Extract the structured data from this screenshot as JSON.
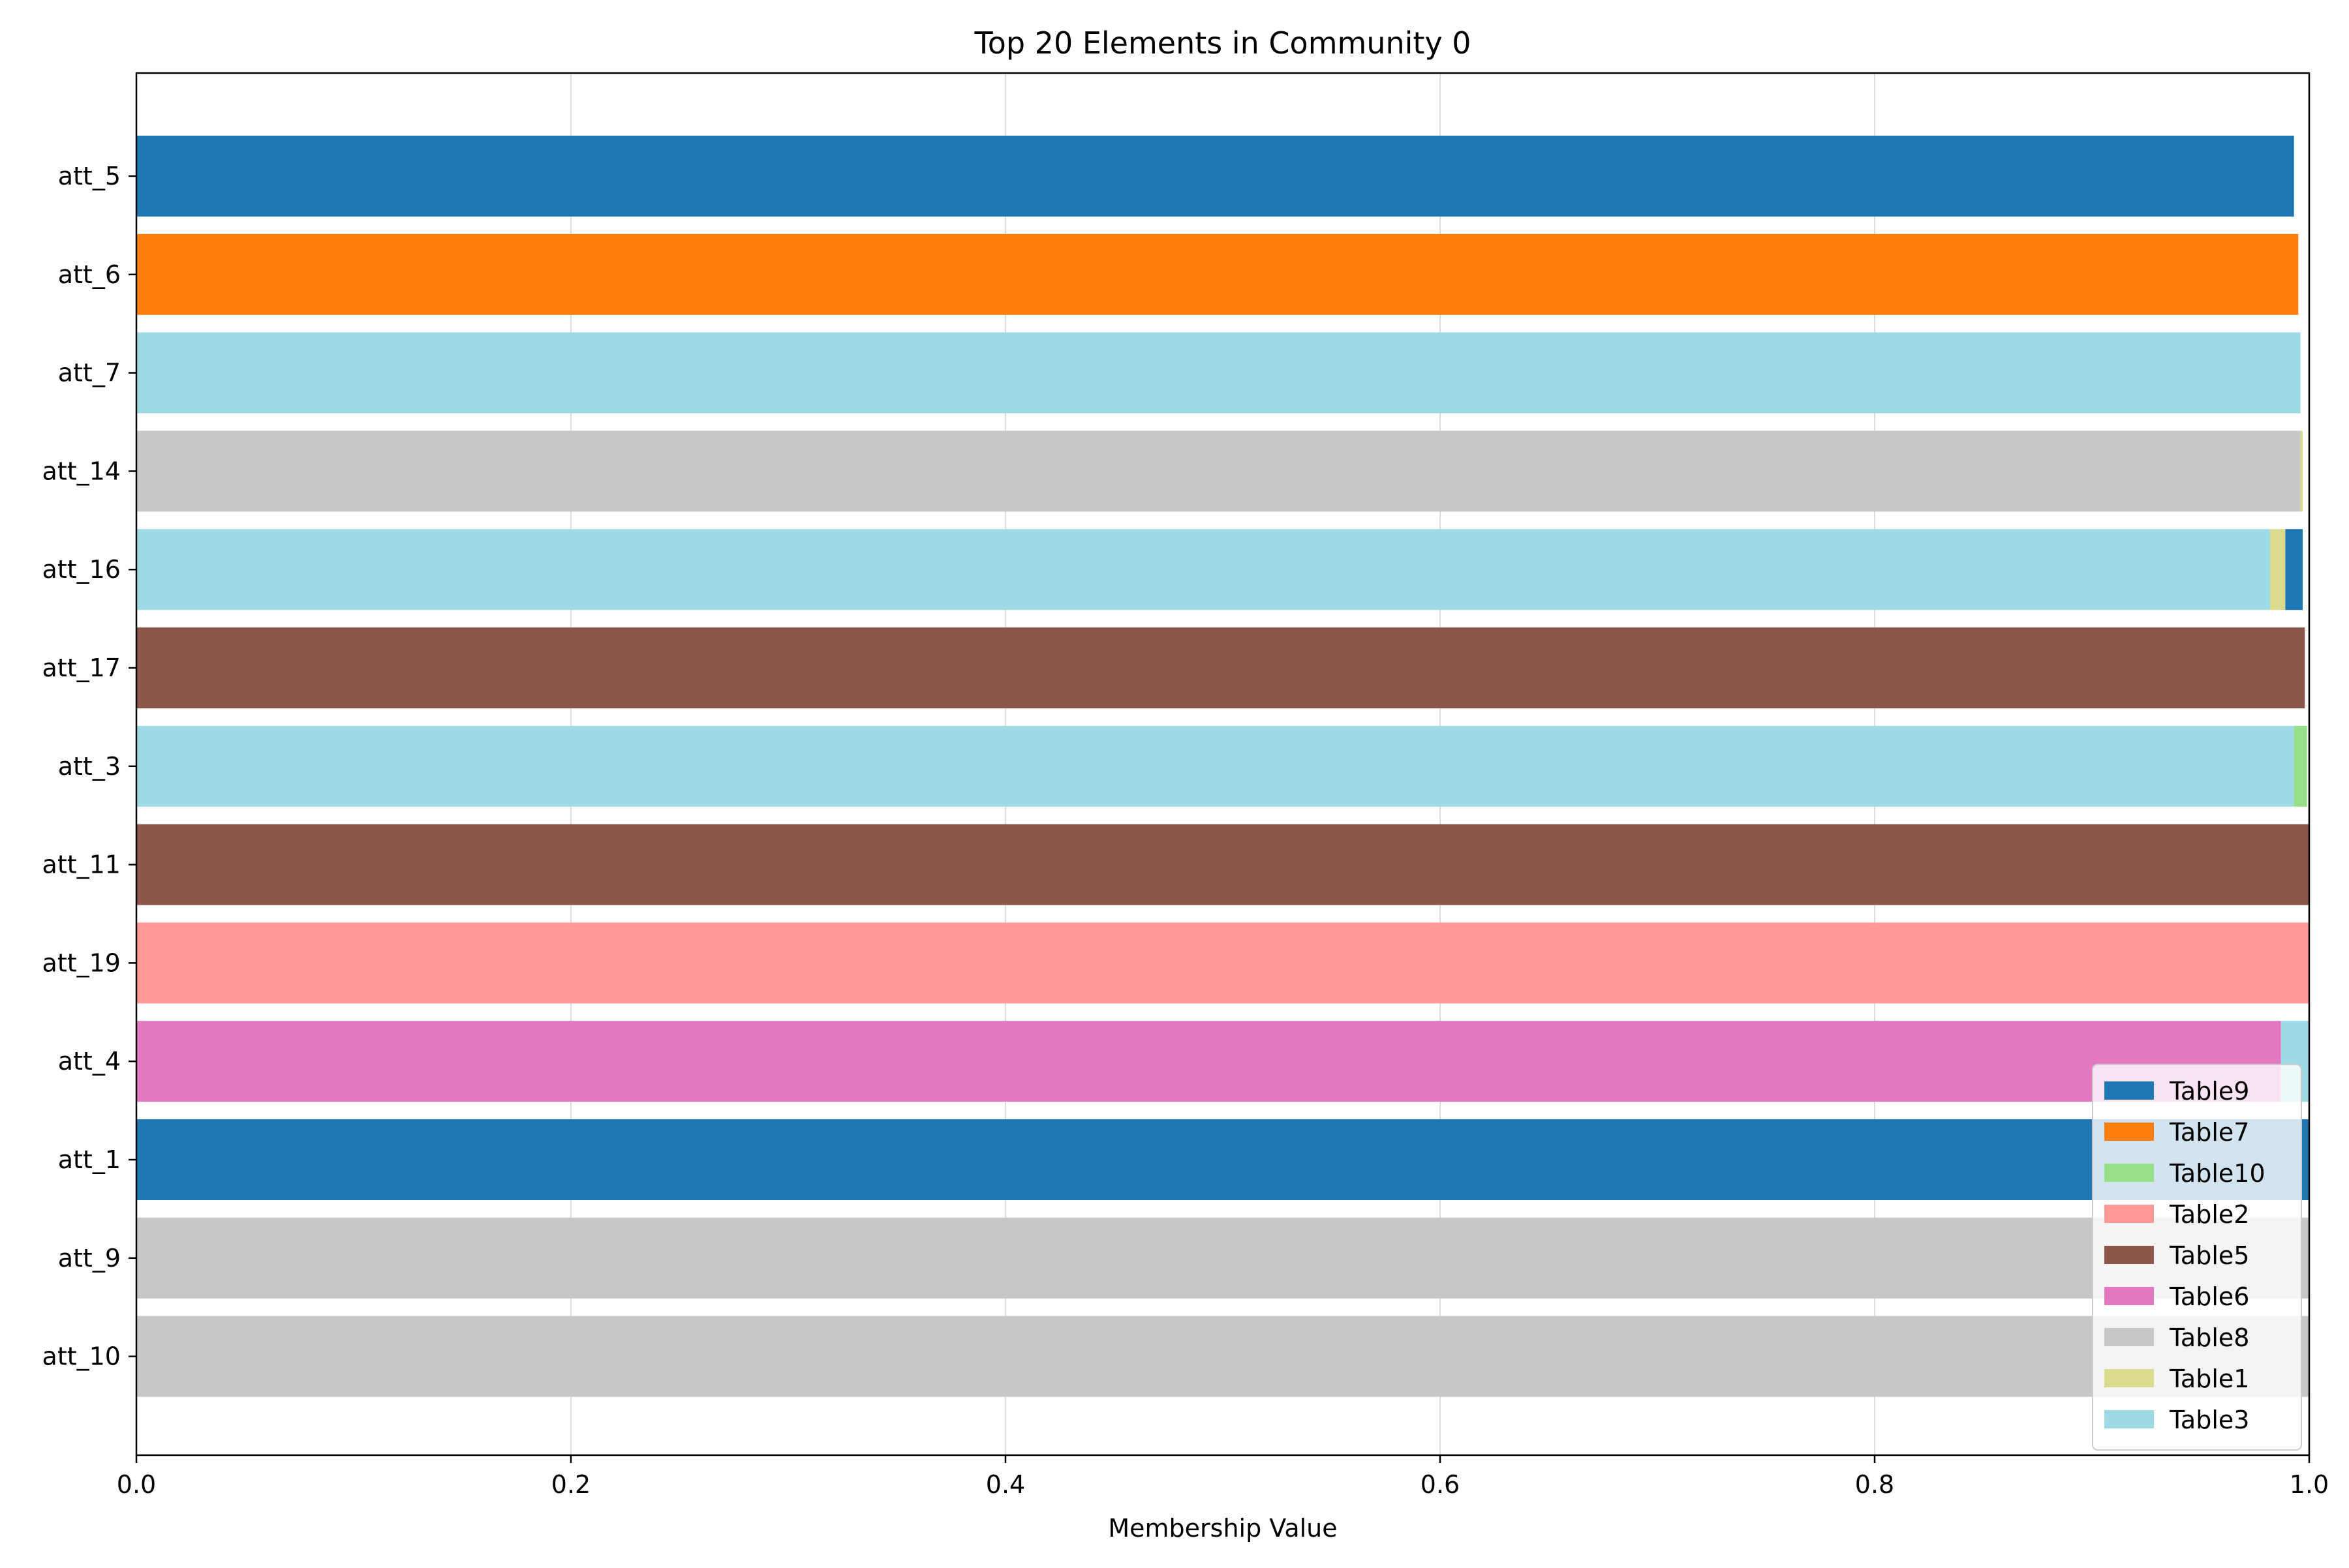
{
  "chart_data": {
    "type": "bar",
    "orientation": "horizontal",
    "stacked": true,
    "title": "Top 20 Elements in Community 0",
    "xlabel": "Membership Value",
    "ylabel": "",
    "xlim": [
      0,
      1.0
    ],
    "x_ticks": [
      "0.0",
      "0.2",
      "0.4",
      "0.6",
      "0.8",
      "1.0"
    ],
    "grid": "x-axis vertical lines",
    "legend_position": "lower-right",
    "categories": [
      "att_5",
      "att_6",
      "att_7",
      "att_14",
      "att_16",
      "att_17",
      "att_3",
      "att_11",
      "att_19",
      "att_4",
      "att_1",
      "att_9",
      "att_10"
    ],
    "series": [
      {
        "name": "Table9",
        "color": "#1f77b4"
      },
      {
        "name": "Table7",
        "color": "#ff7f0e"
      },
      {
        "name": "Table10",
        "color": "#98df8a"
      },
      {
        "name": "Table2",
        "color": "#ff9896"
      },
      {
        "name": "Table5",
        "color": "#8c564b"
      },
      {
        "name": "Table6",
        "color": "#e377c2"
      },
      {
        "name": "Table8",
        "color": "#c7c7c7"
      },
      {
        "name": "Table1",
        "color": "#dbdb8d"
      },
      {
        "name": "Table3",
        "color": "#9edae5"
      }
    ],
    "bars": [
      {
        "category": "att_5",
        "segments": [
          {
            "series": "Table9",
            "value": 0.993
          }
        ]
      },
      {
        "category": "att_6",
        "segments": [
          {
            "series": "Table7",
            "value": 0.995
          }
        ]
      },
      {
        "category": "att_7",
        "segments": [
          {
            "series": "Table3",
            "value": 0.996
          }
        ]
      },
      {
        "category": "att_14",
        "segments": [
          {
            "series": "Table8",
            "value": 0.996
          },
          {
            "series": "Table1",
            "value": 0.001
          }
        ]
      },
      {
        "category": "att_16",
        "segments": [
          {
            "series": "Table3",
            "value": 0.982
          },
          {
            "series": "Table1",
            "value": 0.007
          },
          {
            "series": "Table9",
            "value": 0.008
          }
        ]
      },
      {
        "category": "att_17",
        "segments": [
          {
            "series": "Table5",
            "value": 0.998
          }
        ]
      },
      {
        "category": "att_3",
        "segments": [
          {
            "series": "Table3",
            "value": 0.993
          },
          {
            "series": "Table10",
            "value": 0.006
          }
        ]
      },
      {
        "category": "att_11",
        "segments": [
          {
            "series": "Table5",
            "value": 1.0
          }
        ]
      },
      {
        "category": "att_19",
        "segments": [
          {
            "series": "Table2",
            "value": 1.0
          }
        ]
      },
      {
        "category": "att_4",
        "segments": [
          {
            "series": "Table6",
            "value": 0.987
          },
          {
            "series": "Table3",
            "value": 0.013
          }
        ]
      },
      {
        "category": "att_1",
        "segments": [
          {
            "series": "Table9",
            "value": 1.0
          }
        ]
      },
      {
        "category": "att_9",
        "segments": [
          {
            "series": "Table8",
            "value": 1.0
          }
        ]
      },
      {
        "category": "att_10",
        "segments": [
          {
            "series": "Table8",
            "value": 1.0
          }
        ]
      }
    ]
  }
}
